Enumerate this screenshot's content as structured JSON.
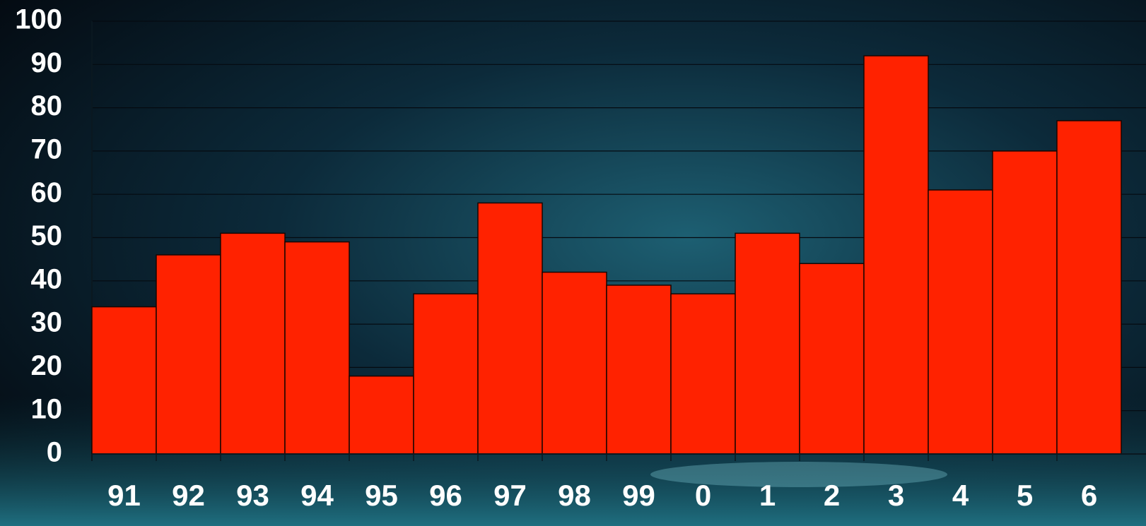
{
  "chart_data": {
    "type": "bar",
    "categories": [
      "91",
      "92",
      "93",
      "94",
      "95",
      "96",
      "97",
      "98",
      "99",
      "0",
      "1",
      "2",
      "3",
      "4",
      "5",
      "6"
    ],
    "values": [
      34,
      46,
      51,
      49,
      18,
      37,
      58,
      42,
      39,
      37,
      51,
      44,
      92,
      61,
      70,
      77
    ],
    "color": "#ff2200",
    "ylim": [
      0,
      100
    ],
    "yticks": [
      0,
      10,
      20,
      30,
      40,
      50,
      60,
      70,
      80,
      90,
      100
    ],
    "grid": true
  }
}
